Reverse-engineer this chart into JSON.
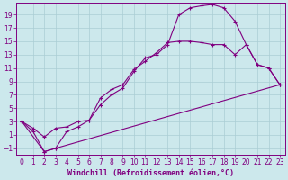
{
  "background_color": "#cce8ec",
  "grid_color": "#aacdd4",
  "line_color": "#800080",
  "marker": "+",
  "markersize": 3,
  "linewidth": 0.8,
  "xlabel": "Windchill (Refroidissement éolien,°C)",
  "xlabel_fontsize": 6,
  "tick_fontsize": 5.5,
  "xlim": [
    -0.5,
    23.5
  ],
  "ylim": [
    -2.0,
    20.8
  ],
  "xticks": [
    0,
    1,
    2,
    3,
    4,
    5,
    6,
    7,
    8,
    9,
    10,
    11,
    12,
    13,
    14,
    15,
    16,
    17,
    18,
    19,
    20,
    21,
    22,
    23
  ],
  "yticks": [
    -1,
    1,
    3,
    5,
    7,
    9,
    11,
    13,
    15,
    17,
    19
  ],
  "series1_x": [
    0,
    1,
    2,
    3,
    4,
    5,
    6,
    7,
    8,
    9,
    10,
    11,
    12,
    13,
    14,
    15,
    16,
    17,
    18,
    19,
    20,
    21,
    22,
    23
  ],
  "series1_y": [
    3,
    2,
    0.7,
    2,
    2.2,
    3,
    3.2,
    5.5,
    7,
    8,
    10.5,
    12.5,
    13,
    14.5,
    19,
    20,
    20.3,
    20.5,
    20,
    18,
    14.5,
    11.5,
    11,
    8.5
  ],
  "series2_x": [
    0,
    1,
    2,
    3,
    4,
    5,
    6,
    7,
    8,
    9,
    10,
    11,
    12,
    13,
    14,
    15,
    16,
    17,
    18,
    19,
    20,
    21,
    22,
    23
  ],
  "series2_y": [
    3,
    1.5,
    -1.5,
    -1,
    1.5,
    2.2,
    3.2,
    6.5,
    7.8,
    8.5,
    10.8,
    12,
    13.3,
    14.8,
    15,
    15,
    14.8,
    14.5,
    14.5,
    13,
    14.5,
    11.5,
    11,
    8.5
  ],
  "series3_x": [
    0,
    2,
    3,
    23
  ],
  "series3_y": [
    3,
    -1.5,
    -1,
    8.5
  ]
}
